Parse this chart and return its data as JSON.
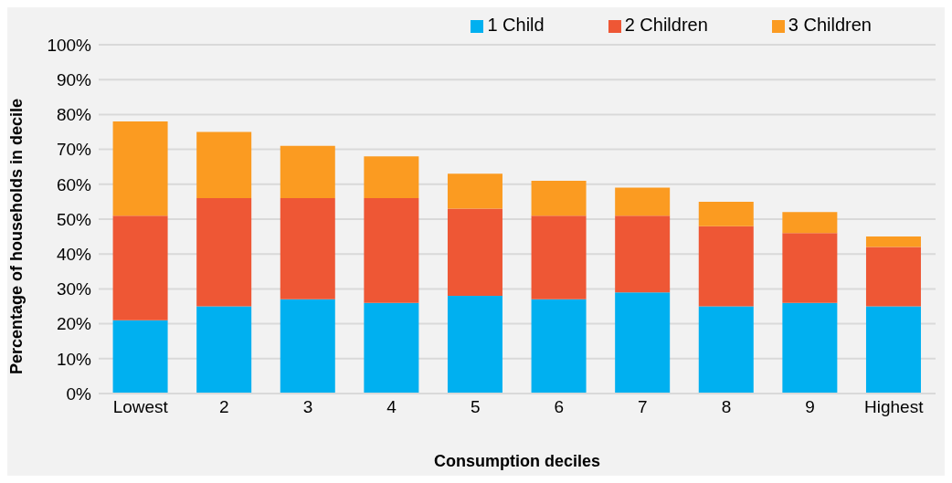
{
  "chart_data": {
    "type": "bar",
    "stacked": true,
    "xlabel": "Consumption deciles",
    "ylabel": "Percentage of households in decile",
    "categories": [
      "Lowest",
      "2",
      "3",
      "4",
      "5",
      "6",
      "7",
      "8",
      "9",
      "Highest"
    ],
    "series": [
      {
        "name": "1 Child",
        "color": "#00b0f0",
        "values": [
          21,
          25,
          27,
          26,
          28,
          27,
          29,
          25,
          26,
          25
        ]
      },
      {
        "name": "2 Children",
        "color": "#ee5735",
        "values": [
          30,
          31,
          29,
          30,
          25,
          24,
          22,
          23,
          20,
          17
        ]
      },
      {
        "name": "3 Children",
        "color": "#fb9b21",
        "values": [
          27,
          19,
          15,
          12,
          10,
          10,
          8,
          7,
          6,
          3
        ]
      }
    ],
    "ylim": [
      0,
      100
    ],
    "yticks": [
      {
        "value": 0,
        "label": "0%"
      },
      {
        "value": 10,
        "label": "10%"
      },
      {
        "value": 20,
        "label": "20%"
      },
      {
        "value": 30,
        "label": "30%"
      },
      {
        "value": 40,
        "label": "40%"
      },
      {
        "value": 50,
        "label": "50%"
      },
      {
        "value": 60,
        "label": "60%"
      },
      {
        "value": 70,
        "label": "70%"
      },
      {
        "value": 80,
        "label": "80%"
      },
      {
        "value": 90,
        "label": "90%"
      },
      {
        "value": 100,
        "label": "100%"
      }
    ],
    "grid": "y",
    "legend": "top right"
  }
}
